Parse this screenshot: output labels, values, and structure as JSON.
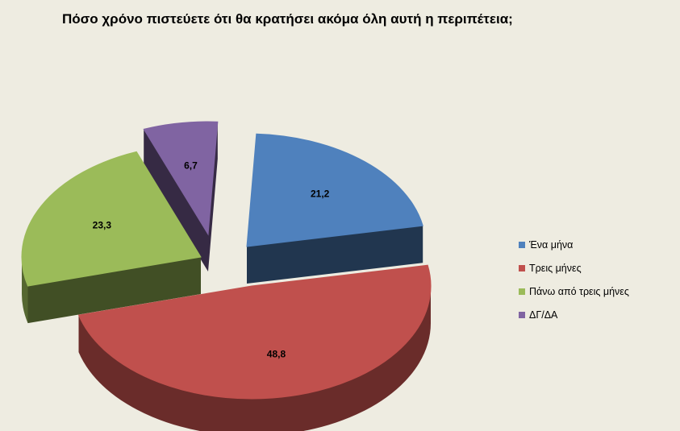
{
  "title": "Πόσο χρόνο πιστεύετε ότι θα κρατήσει ακόμα όλη αυτή η περιπέτεια;",
  "chart_data": {
    "type": "pie",
    "title": "Πόσο χρόνο πιστεύετε ότι θα κρατήσει ακόμα όλη αυτή η περιπέτεια;",
    "legend_position": "right",
    "three_d": true,
    "series": [
      {
        "name": "Ένα μήνα",
        "value": 21.2,
        "label": "21,2",
        "color": "#4f81bd",
        "exploded": true
      },
      {
        "name": "Τρεις μήνες",
        "value": 48.8,
        "label": "48,8",
        "color": "#c0504d",
        "exploded": false
      },
      {
        "name": "Πάνω από τρεις μήνες",
        "value": 23.3,
        "label": "23,3",
        "color": "#9bbb59",
        "exploded": true
      },
      {
        "name": "ΔΓ/ΔΑ",
        "value": 6.7,
        "label": "6,7",
        "color": "#8064a2",
        "exploded": true
      }
    ]
  }
}
